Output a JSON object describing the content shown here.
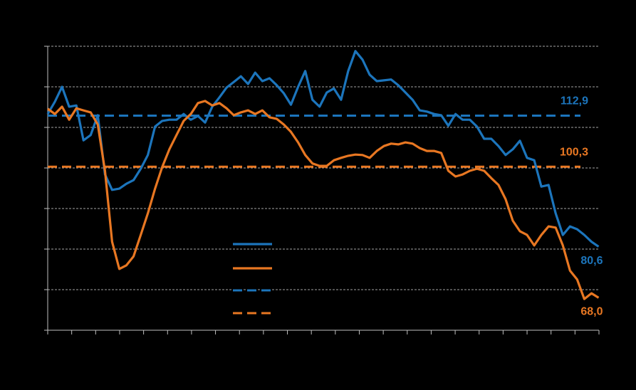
{
  "chart_data": {
    "type": "line",
    "background": "#000000",
    "xlim": [
      0,
      77.05
    ],
    "xticks": [
      0,
      3.35,
      6.7,
      10.05,
      13.4,
      16.75,
      20.1,
      23.45,
      26.8,
      30.15,
      33.5,
      36.85,
      40.2,
      43.55,
      46.9,
      50.25,
      53.6,
      56.95,
      60.3,
      63.65,
      67,
      70.35,
      73.7,
      77.05
    ],
    "ylim": [
      60,
      130
    ],
    "yticks": [
      60,
      70,
      80,
      90,
      100,
      110,
      120,
      130
    ],
    "grid": true,
    "x": [
      0,
      1,
      2,
      3,
      4,
      5,
      6,
      7,
      8,
      9,
      10,
      11,
      12,
      13,
      14,
      15,
      16,
      17,
      18,
      19,
      20,
      21,
      22,
      23,
      24,
      25,
      26,
      27,
      28,
      29,
      30,
      31,
      32,
      33,
      34,
      35,
      36,
      37,
      38,
      39,
      40,
      41,
      42,
      43,
      44,
      45,
      46,
      47,
      48,
      49,
      50,
      51,
      52,
      53,
      54,
      55,
      56,
      57,
      58,
      59,
      60,
      61,
      62,
      63,
      64,
      65,
      66,
      67,
      68,
      69,
      70,
      71,
      72,
      73,
      74,
      75,
      76,
      77
    ],
    "series": [
      {
        "color": "#1c75bc",
        "end_label": "80,6",
        "values": [
          113.3,
          116.3,
          120.0,
          115.1,
          115.4,
          106.8,
          108.1,
          113.0,
          98.4,
          94.6,
          94.9,
          96.1,
          97.0,
          99.8,
          103.2,
          110.2,
          111.6,
          111.9,
          111.9,
          113.3,
          111.9,
          112.8,
          111.2,
          115.1,
          117.4,
          119.8,
          121.2,
          122.6,
          120.7,
          123.5,
          121.4,
          122.1,
          120.4,
          118.4,
          115.6,
          120.0,
          123.9,
          116.8,
          115.1,
          118.6,
          119.6,
          116.8,
          123.9,
          128.8,
          126.7,
          123.0,
          121.4,
          121.6,
          121.8,
          120.4,
          118.6,
          116.8,
          114.2,
          113.9,
          113.3,
          113.0,
          110.4,
          113.3,
          111.9,
          111.9,
          110.2,
          107.2,
          107.2,
          105.4,
          103.2,
          104.6,
          106.7,
          102.5,
          101.9,
          95.4,
          95.8,
          88.8,
          83.5,
          85.6,
          84.9,
          83.5,
          81.8,
          80.6
        ]
      },
      {
        "color": "#e87722",
        "end_label": "68,0",
        "values": [
          114.6,
          113.3,
          115.1,
          111.9,
          114.7,
          114.2,
          113.7,
          110.7,
          99.3,
          81.8,
          75.1,
          76.0,
          78.2,
          83.5,
          88.8,
          94.9,
          100.2,
          104.6,
          108.1,
          111.6,
          113.3,
          116.0,
          116.5,
          115.4,
          116.0,
          114.7,
          113.0,
          113.7,
          114.2,
          113.3,
          114.2,
          112.5,
          112.1,
          110.7,
          108.9,
          106.3,
          103.2,
          101.1,
          100.5,
          100.5,
          101.9,
          102.5,
          103.0,
          103.3,
          103.2,
          102.5,
          104.2,
          105.4,
          106.0,
          105.8,
          106.3,
          106.0,
          104.9,
          104.2,
          104.2,
          103.7,
          99.3,
          97.9,
          98.4,
          99.3,
          99.8,
          99.3,
          97.5,
          95.8,
          92.3,
          87.0,
          84.4,
          83.5,
          80.9,
          83.5,
          85.6,
          85.3,
          80.9,
          74.7,
          72.5,
          67.7,
          69.1,
          68.0
        ]
      }
    ],
    "reference_lines": [
      {
        "value": 112.9,
        "label": "112,9",
        "color": "#1c75bc"
      },
      {
        "value": 100.3,
        "label": "100,3",
        "color": "#e87722"
      }
    ]
  }
}
